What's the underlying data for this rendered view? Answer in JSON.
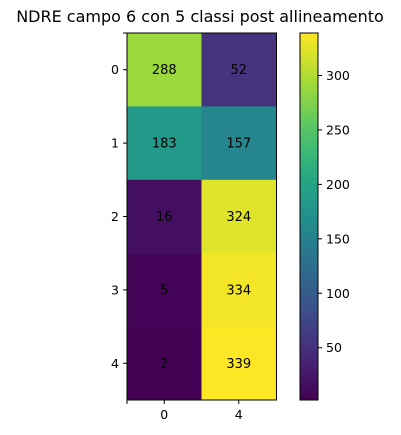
{
  "chart_data": {
    "type": "heatmap",
    "title": "NDRE campo 6 con 5 classi post allineamento",
    "xlabel": "",
    "ylabel": "",
    "row_labels": [
      "0",
      "1",
      "2",
      "3",
      "4"
    ],
    "col_labels": [
      "0",
      "4"
    ],
    "values": [
      [
        288,
        52
      ],
      [
        183,
        157
      ],
      [
        16,
        324
      ],
      [
        5,
        334
      ],
      [
        2,
        339
      ]
    ],
    "colormap": "viridis",
    "vmin": 2,
    "vmax": 339,
    "colorbar_ticks": [
      "50",
      "100",
      "150",
      "200",
      "250",
      "300"
    ],
    "colorbar_tick_values": [
      50,
      100,
      150,
      200,
      250,
      300
    ],
    "grid": false
  }
}
